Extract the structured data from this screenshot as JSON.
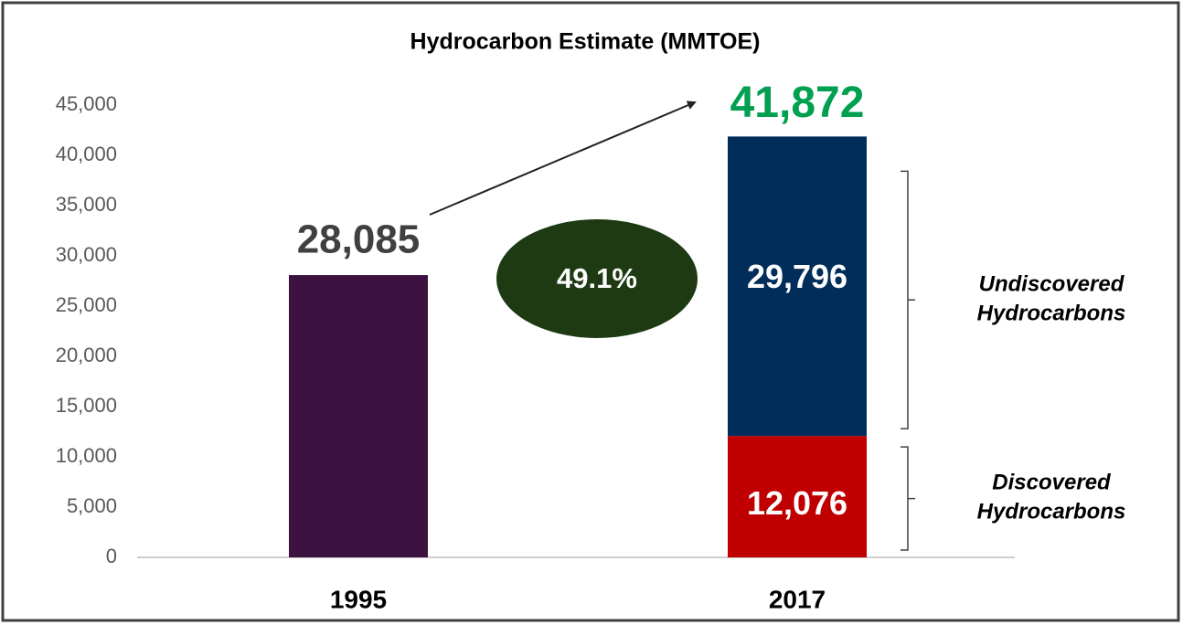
{
  "chart_data": {
    "type": "stacked_bar",
    "title": "Hydrocarbon Estimate (MMTOE)",
    "categories": [
      "1995",
      "2017"
    ],
    "series": [
      {
        "color": "#3b1240",
        "values": [
          28085,
          null
        ],
        "value_labels": [
          "28,085",
          null
        ]
      },
      {
        "name": "Discovered Hydrocarbons",
        "color": "#c00000",
        "values": [
          null,
          12076
        ],
        "value_labels": [
          null,
          "12,076"
        ]
      },
      {
        "name": "Undiscovered Hydrocarbons",
        "color": "#002d5a",
        "values": [
          null,
          29796
        ],
        "value_labels": [
          null,
          "29,796"
        ]
      }
    ],
    "totals": [
      null,
      41872
    ],
    "total_labels": [
      null,
      "41,872"
    ],
    "annotation": "49.1%",
    "ylim": [
      0,
      45000
    ],
    "yticks": [
      0,
      {
        "value": 5000,
        "label": "5,000"
      },
      {
        "value": 10000,
        "label": "10,000"
      },
      {
        "value": 15000,
        "label": "15,000"
      },
      {
        "value": 20000,
        "label": "20,000"
      },
      {
        "value": 25000,
        "label": "25,000"
      },
      {
        "value": 30000,
        "label": "30,000"
      },
      {
        "value": 35000,
        "label": "35,000"
      },
      {
        "value": 40000,
        "label": "40,000"
      },
      {
        "value": 45000,
        "label": "45,000"
      }
    ],
    "grid": false
  }
}
